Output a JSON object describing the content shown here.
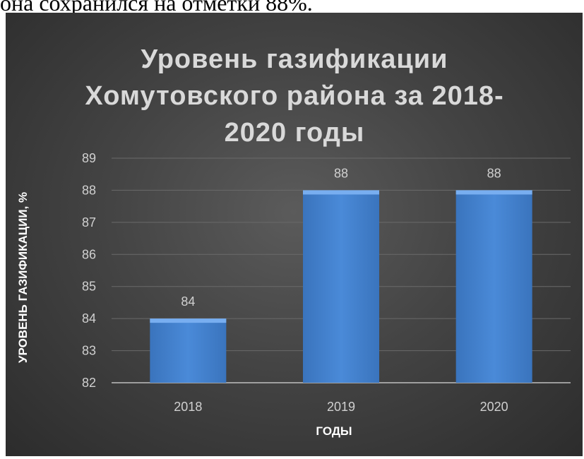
{
  "page": {
    "context_text": "она сохранился на отметки 88%."
  },
  "chart_data": {
    "type": "bar",
    "title_lines": [
      "Уровень газификации",
      "Хомутовского района за 2018-",
      "2020 годы"
    ],
    "xlabel": "ГОДЫ",
    "ylabel": "УРОВЕНЬ ГАЗИФИКАЦИИ, %",
    "categories": [
      "2018",
      "2019",
      "2020"
    ],
    "values": [
      84,
      88,
      88
    ],
    "data_labels": [
      "84",
      "88",
      "88"
    ],
    "ylim": [
      82,
      89
    ],
    "yticks": [
      "82",
      "83",
      "84",
      "85",
      "86",
      "87",
      "88",
      "89"
    ],
    "grid": true,
    "legend": "none",
    "colors": {
      "bar": "#4a8ad8",
      "bar_top": "#78aef0",
      "grid": "#6a6a6a",
      "axis_text": "#d0d0d0",
      "title": "#d9d9d9"
    }
  }
}
